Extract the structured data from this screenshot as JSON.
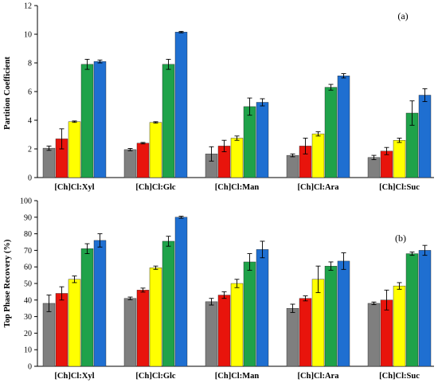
{
  "colors": [
    "#7f7f7f",
    "#e8140c",
    "#ffff00",
    "#1fa24a",
    "#1f6fd1"
  ],
  "chart_data": [
    {
      "type": "bar",
      "panel_label": "(a)",
      "ylabel": "Partition Coefficient",
      "ylim": [
        0,
        12
      ],
      "yticks": [
        0,
        2,
        4,
        6,
        8,
        10,
        12
      ],
      "categories": [
        "[Ch]Cl:Xyl",
        "[Ch]Cl:Glc",
        "[Ch]Cl:Man",
        "[Ch]Cl:Ara",
        "[Ch]Cl:Suc"
      ],
      "series": [
        {
          "values": [
            2.05,
            1.95,
            1.65,
            1.55,
            1.4
          ],
          "errors": [
            0.15,
            0.08,
            0.5,
            0.1,
            0.15
          ]
        },
        {
          "values": [
            2.7,
            2.4,
            2.2,
            2.2,
            1.85
          ],
          "errors": [
            0.7,
            0.05,
            0.4,
            0.55,
            0.25
          ]
        },
        {
          "values": [
            3.9,
            3.85,
            2.75,
            3.05,
            2.6
          ],
          "errors": [
            0.05,
            0.05,
            0.15,
            0.15,
            0.15
          ]
        },
        {
          "values": [
            7.9,
            7.9,
            4.95,
            6.3,
            4.5
          ],
          "errors": [
            0.35,
            0.35,
            0.6,
            0.2,
            0.85
          ]
        },
        {
          "values": [
            8.1,
            10.15,
            5.25,
            7.1,
            5.75
          ],
          "errors": [
            0.1,
            0.05,
            0.25,
            0.15,
            0.45
          ]
        }
      ]
    },
    {
      "type": "bar",
      "panel_label": "(b)",
      "ylabel": "Top Phase Recovery (%)",
      "ylim": [
        0,
        100
      ],
      "yticks": [
        0,
        10,
        20,
        30,
        40,
        50,
        60,
        70,
        80,
        90,
        100
      ],
      "categories": [
        "[Ch]Cl:Xyl",
        "[Ch]Cl:Glc",
        "[Ch]Cl:Man",
        "[Ch]Cl:Ara",
        "[Ch]Cl:Suc"
      ],
      "series": [
        {
          "values": [
            38,
            41,
            39,
            35,
            38
          ],
          "errors": [
            5,
            0.8,
            2,
            2.5,
            0.8
          ]
        },
        {
          "values": [
            44,
            46,
            43,
            41,
            40
          ],
          "errors": [
            4,
            1.2,
            2,
            1.5,
            6
          ]
        },
        {
          "values": [
            52.5,
            59.5,
            50,
            52.5,
            48.5
          ],
          "errors": [
            2,
            1,
            2.5,
            8,
            2
          ]
        },
        {
          "values": [
            71,
            75.5,
            63,
            60.5,
            68
          ],
          "errors": [
            3,
            3,
            5,
            2.5,
            1
          ]
        },
        {
          "values": [
            76,
            90,
            70.5,
            63.5,
            70
          ],
          "errors": [
            4,
            0.6,
            5,
            5,
            3
          ]
        }
      ]
    }
  ]
}
